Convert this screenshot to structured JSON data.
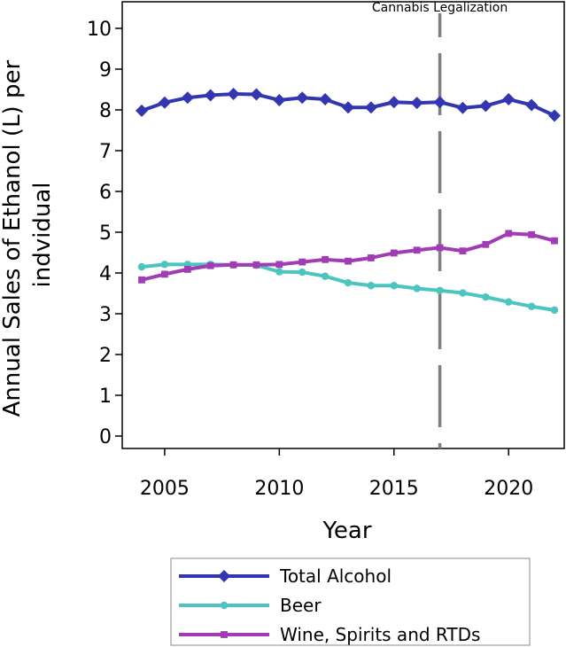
{
  "chart_data": {
    "type": "line",
    "xlabel": "Year",
    "ylabel_lines": [
      "Annual Sales of Ethanol (L) per",
      "indvidual"
    ],
    "xlim": [
      2004,
      2022
    ],
    "ylim": [
      0,
      10
    ],
    "xticks": [
      2005,
      2010,
      2015,
      2020
    ],
    "yticks": [
      0,
      1,
      2,
      3,
      4,
      5,
      6,
      7,
      8,
      9,
      10
    ],
    "grid": false,
    "legend_position": "bottom",
    "annotation": {
      "label": "Cannabis Legalization",
      "x": 2017,
      "style": "dashed-vertical-line",
      "color": "#808080"
    },
    "x": [
      2004,
      2005,
      2006,
      2007,
      2008,
      2009,
      2010,
      2011,
      2012,
      2013,
      2014,
      2015,
      2016,
      2017,
      2018,
      2019,
      2020,
      2021,
      2022
    ],
    "series": [
      {
        "name": "Total Alcohol",
        "color": "#3236b0",
        "marker": "diamond",
        "values": [
          7.98,
          8.18,
          8.3,
          8.36,
          8.39,
          8.38,
          8.24,
          8.3,
          8.26,
          8.06,
          8.06,
          8.19,
          8.17,
          8.19,
          8.05,
          8.1,
          8.26,
          8.12,
          7.86
        ]
      },
      {
        "name": "Beer",
        "color": "#4cc4bf",
        "marker": "circle",
        "values": [
          4.15,
          4.21,
          4.21,
          4.21,
          4.2,
          4.19,
          4.03,
          4.02,
          3.92,
          3.76,
          3.69,
          3.69,
          3.62,
          3.57,
          3.51,
          3.41,
          3.29,
          3.18,
          3.09
        ]
      },
      {
        "name": "Wine, Spirits and RTDs",
        "color": "#a03cb4",
        "marker": "square",
        "values": [
          3.83,
          3.97,
          4.09,
          4.18,
          4.2,
          4.2,
          4.21,
          4.27,
          4.33,
          4.29,
          4.37,
          4.49,
          4.56,
          4.62,
          4.54,
          4.7,
          4.97,
          4.94,
          4.79
        ]
      }
    ]
  }
}
